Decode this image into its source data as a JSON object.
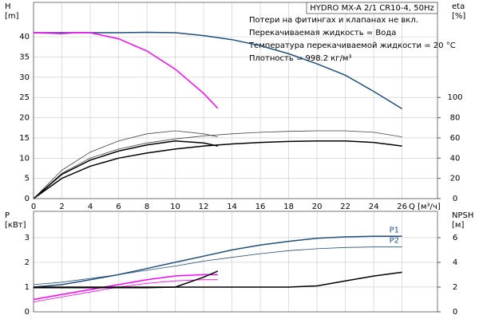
{
  "chart_data": [
    {
      "type": "line",
      "title": "HYDRO MX-A 2/1 CR10-4, 50Hz",
      "annotations": [
        "Потери на фитингах и клапанах не вкл.",
        "Перекачиваемая жидкость = Вода",
        "Температура перекачиваемой жидкости = 20 °C",
        "Плотность = 998.2 кг/м³"
      ],
      "ylabel": "H",
      "yunit": "[m]",
      "y2label": "eta",
      "y2unit": "[%]",
      "xlabel": "Q [м³/ч]",
      "xlim": [
        0,
        28.5
      ],
      "xticks": [
        0,
        2,
        4,
        6,
        8,
        10,
        12,
        14,
        16,
        18,
        20,
        22,
        24,
        26
      ],
      "ylim": [
        0,
        48.5
      ],
      "yticks": [
        0,
        5,
        10,
        15,
        20,
        25,
        30,
        35,
        40
      ],
      "y2lim": [
        0,
        194
      ],
      "y2ticks": [
        0,
        20,
        40,
        60,
        80,
        100
      ],
      "grid": true,
      "series": [
        {
          "color": "#1f4f7f",
          "line_width": 1.5,
          "x": [
            0,
            2,
            4,
            6,
            8,
            10,
            12,
            14,
            16,
            18,
            20,
            22,
            24,
            26
          ],
          "values": [
            41,
            41,
            41,
            41,
            41.1,
            41,
            40.3,
            39.3,
            37.8,
            35.8,
            33.3,
            30.5,
            26.5,
            22.2
          ]
        },
        {
          "color": "#ff00ff",
          "line_width": 1.5,
          "x": [
            0,
            2,
            3,
            4,
            6,
            8,
            10,
            12,
            13
          ],
          "values": [
            41,
            40.8,
            41,
            41,
            39.5,
            36.5,
            32,
            26,
            22.3
          ]
        },
        {
          "color": "#000000",
          "line_width": 1.5,
          "axis": "y2",
          "x": [
            0,
            2,
            4,
            6,
            8,
            10,
            12,
            14,
            16,
            18,
            20,
            22,
            24,
            26
          ],
          "values": [
            0,
            20,
            32,
            40,
            45,
            49,
            52,
            54,
            55.5,
            56.5,
            57,
            57,
            55.5,
            52
          ]
        },
        {
          "color": "#444444",
          "line_width": 0.8,
          "axis": "y2",
          "x": [
            0,
            2,
            4,
            6,
            8,
            10,
            12,
            14,
            16,
            18,
            20,
            22,
            24,
            26
          ],
          "values": [
            0,
            25,
            40,
            49,
            55,
            59,
            62,
            64,
            65.5,
            66.5,
            67,
            67,
            65.5,
            61
          ]
        },
        {
          "color": "#000000",
          "line_width": 1.5,
          "axis": "y2",
          "x": [
            0,
            2,
            4,
            6,
            8,
            10,
            12,
            13
          ],
          "values": [
            0,
            24,
            38,
            47,
            53,
            57,
            55,
            52
          ]
        },
        {
          "color": "#444444",
          "line_width": 0.8,
          "axis": "y2",
          "x": [
            0,
            2,
            4,
            6,
            8,
            10,
            12,
            13
          ],
          "values": [
            0,
            28,
            46,
            57,
            64,
            67,
            64,
            61
          ]
        }
      ]
    },
    {
      "type": "line",
      "ylabel": "P",
      "yunit": "[кВт]",
      "y2label": "NPSH",
      "y2unit": "[м]",
      "xlim": [
        0,
        28.5
      ],
      "xticks": [
        0,
        2,
        4,
        6,
        8,
        10,
        12,
        14,
        16,
        18,
        20,
        22,
        24,
        26
      ],
      "xtick_labels": false,
      "ylim": [
        0,
        4.06
      ],
      "yticks": [
        0,
        1,
        2,
        3
      ],
      "y2lim": [
        0,
        8.13
      ],
      "y2ticks": [
        0,
        2,
        4,
        6
      ],
      "grid": true,
      "series": [
        {
          "name": "P1",
          "color": "#1f4f7f",
          "line_width": 1.5,
          "x": [
            0,
            2,
            4,
            6,
            8,
            10,
            12,
            14,
            16,
            18,
            20,
            22,
            24,
            26
          ],
          "values": [
            1.0,
            1.1,
            1.3,
            1.5,
            1.75,
            2.0,
            2.25,
            2.5,
            2.7,
            2.85,
            2.97,
            3.03,
            3.05,
            3.05
          ]
        },
        {
          "name": "P2",
          "color": "#1f4f7f",
          "line_width": 0.8,
          "x": [
            0,
            2,
            4,
            6,
            8,
            10,
            12,
            14,
            16,
            18,
            20,
            22,
            24,
            26
          ],
          "values": [
            1.1,
            1.2,
            1.35,
            1.5,
            1.68,
            1.85,
            2.05,
            2.2,
            2.35,
            2.47,
            2.55,
            2.6,
            2.62,
            2.62
          ]
        },
        {
          "color": "#ff00ff",
          "line_width": 1.5,
          "x": [
            0,
            2,
            4,
            6,
            8,
            10,
            12,
            13
          ],
          "values": [
            0.5,
            0.7,
            0.9,
            1.1,
            1.3,
            1.45,
            1.5,
            1.5
          ]
        },
        {
          "color": "#ff00ff",
          "line_width": 0.8,
          "x": [
            0,
            2,
            4,
            6,
            8,
            10,
            12,
            13
          ],
          "values": [
            0.4,
            0.6,
            0.8,
            1.0,
            1.15,
            1.25,
            1.3,
            1.3
          ]
        },
        {
          "color": "#000000",
          "line_width": 1.5,
          "axis": "y2",
          "x": [
            0,
            2,
            4,
            6,
            8,
            10,
            12,
            13
          ],
          "values": [
            1.95,
            1.95,
            1.95,
            1.95,
            1.95,
            2.0,
            2.8,
            3.3
          ]
        },
        {
          "color": "#000000",
          "line_width": 1.5,
          "axis": "y2",
          "x": [
            0,
            2,
            4,
            6,
            8,
            10,
            12,
            14,
            16,
            18,
            20,
            22,
            24,
            26
          ],
          "values": [
            2,
            2,
            2,
            2,
            2,
            2,
            2,
            2,
            2,
            2,
            2.1,
            2.5,
            2.9,
            3.2
          ]
        }
      ]
    }
  ]
}
